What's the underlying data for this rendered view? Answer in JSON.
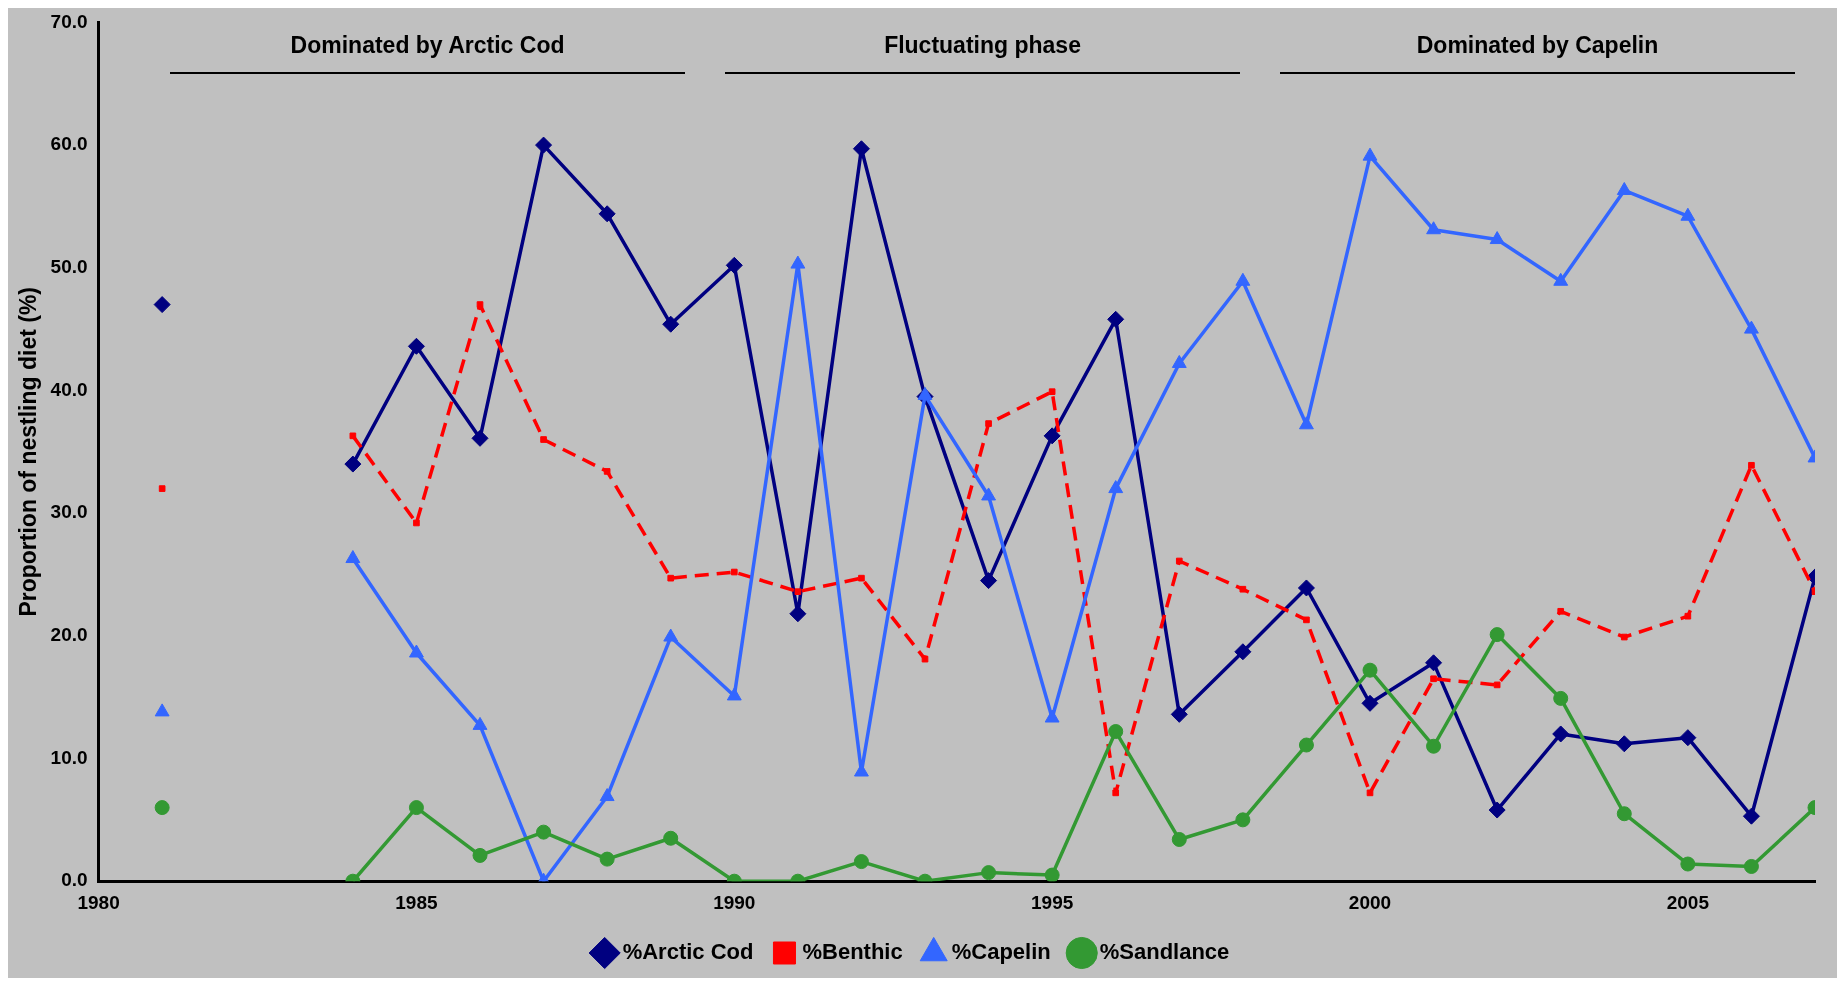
{
  "chart_data": {
    "type": "line",
    "ylabel": "Proportion of nestling diet (%)",
    "x": [
      1981,
      1982,
      1983,
      1984,
      1985,
      1986,
      1987,
      1988,
      1989,
      1990,
      1991,
      1992,
      1993,
      1994,
      1995,
      1996,
      1997,
      1998,
      1999,
      2000,
      2001,
      2002,
      2003,
      2004,
      2005,
      2006,
      2007
    ],
    "series": [
      {
        "name": "%Arctic Cod",
        "color": "#000080",
        "marker": "diamond",
        "line_style": "solid",
        "values": [
          47.0,
          null,
          null,
          34.0,
          43.6,
          36.1,
          60.0,
          54.4,
          45.4,
          50.2,
          21.8,
          59.7,
          39.5,
          24.5,
          36.3,
          45.8,
          13.6,
          18.7,
          23.9,
          14.5,
          17.8,
          5.8,
          12.0,
          11.2,
          11.7,
          5.3,
          24.8
        ]
      },
      {
        "name": "%Benthic",
        "color": "#ff0000",
        "marker": "square",
        "line_style": "dashed",
        "values": [
          32.0,
          null,
          null,
          36.3,
          29.2,
          47.0,
          36.0,
          33.4,
          24.7,
          25.2,
          23.6,
          24.7,
          18.1,
          37.3,
          39.9,
          7.2,
          26.1,
          23.8,
          21.3,
          7.2,
          16.5,
          16.0,
          22.0,
          19.9,
          21.6,
          33.9,
          23.6
        ]
      },
      {
        "name": "%Capelin",
        "color": "#3366ff",
        "marker": "triangle",
        "line_style": "solid",
        "values": [
          13.8,
          null,
          null,
          26.3,
          18.6,
          12.7,
          0.0,
          6.9,
          19.9,
          15.1,
          50.3,
          8.9,
          39.6,
          31.4,
          13.3,
          32.0,
          42.2,
          48.9,
          37.2,
          59.1,
          53.1,
          52.3,
          48.9,
          56.3,
          54.2,
          45.0,
          34.5
        ]
      },
      {
        "name": "%Sandlance",
        "color": "#339933",
        "marker": "circle",
        "line_style": "solid",
        "values": [
          6.0,
          null,
          null,
          0.0,
          6.0,
          2.1,
          4.0,
          1.8,
          3.5,
          0.0,
          0.0,
          1.6,
          0.0,
          0.7,
          0.5,
          12.2,
          3.4,
          5.0,
          11.1,
          17.2,
          11.0,
          20.1,
          14.9,
          5.5,
          1.4,
          1.2,
          6.0
        ]
      }
    ],
    "xlim": [
      1980,
      2007
    ],
    "xticks": [
      1980,
      1985,
      1990,
      1995,
      2000,
      2005
    ],
    "ylim": [
      0,
      70
    ],
    "yticks": [
      {
        "value": 0,
        "label": "0.0"
      },
      {
        "value": 10,
        "label": "10.0"
      },
      {
        "value": 20,
        "label": "20.0"
      },
      {
        "value": 30,
        "label": "30.0"
      },
      {
        "value": 40,
        "label": "40.0"
      },
      {
        "value": 50,
        "label": "50.0"
      },
      {
        "value": 60,
        "label": "60.0"
      },
      {
        "value": 70,
        "label": "70.0"
      }
    ],
    "annotations": [
      "Dominated by Arctic Cod",
      "Fluctuating phase",
      "Dominated by Capelin"
    ],
    "grid": false,
    "legend": "bottom"
  }
}
